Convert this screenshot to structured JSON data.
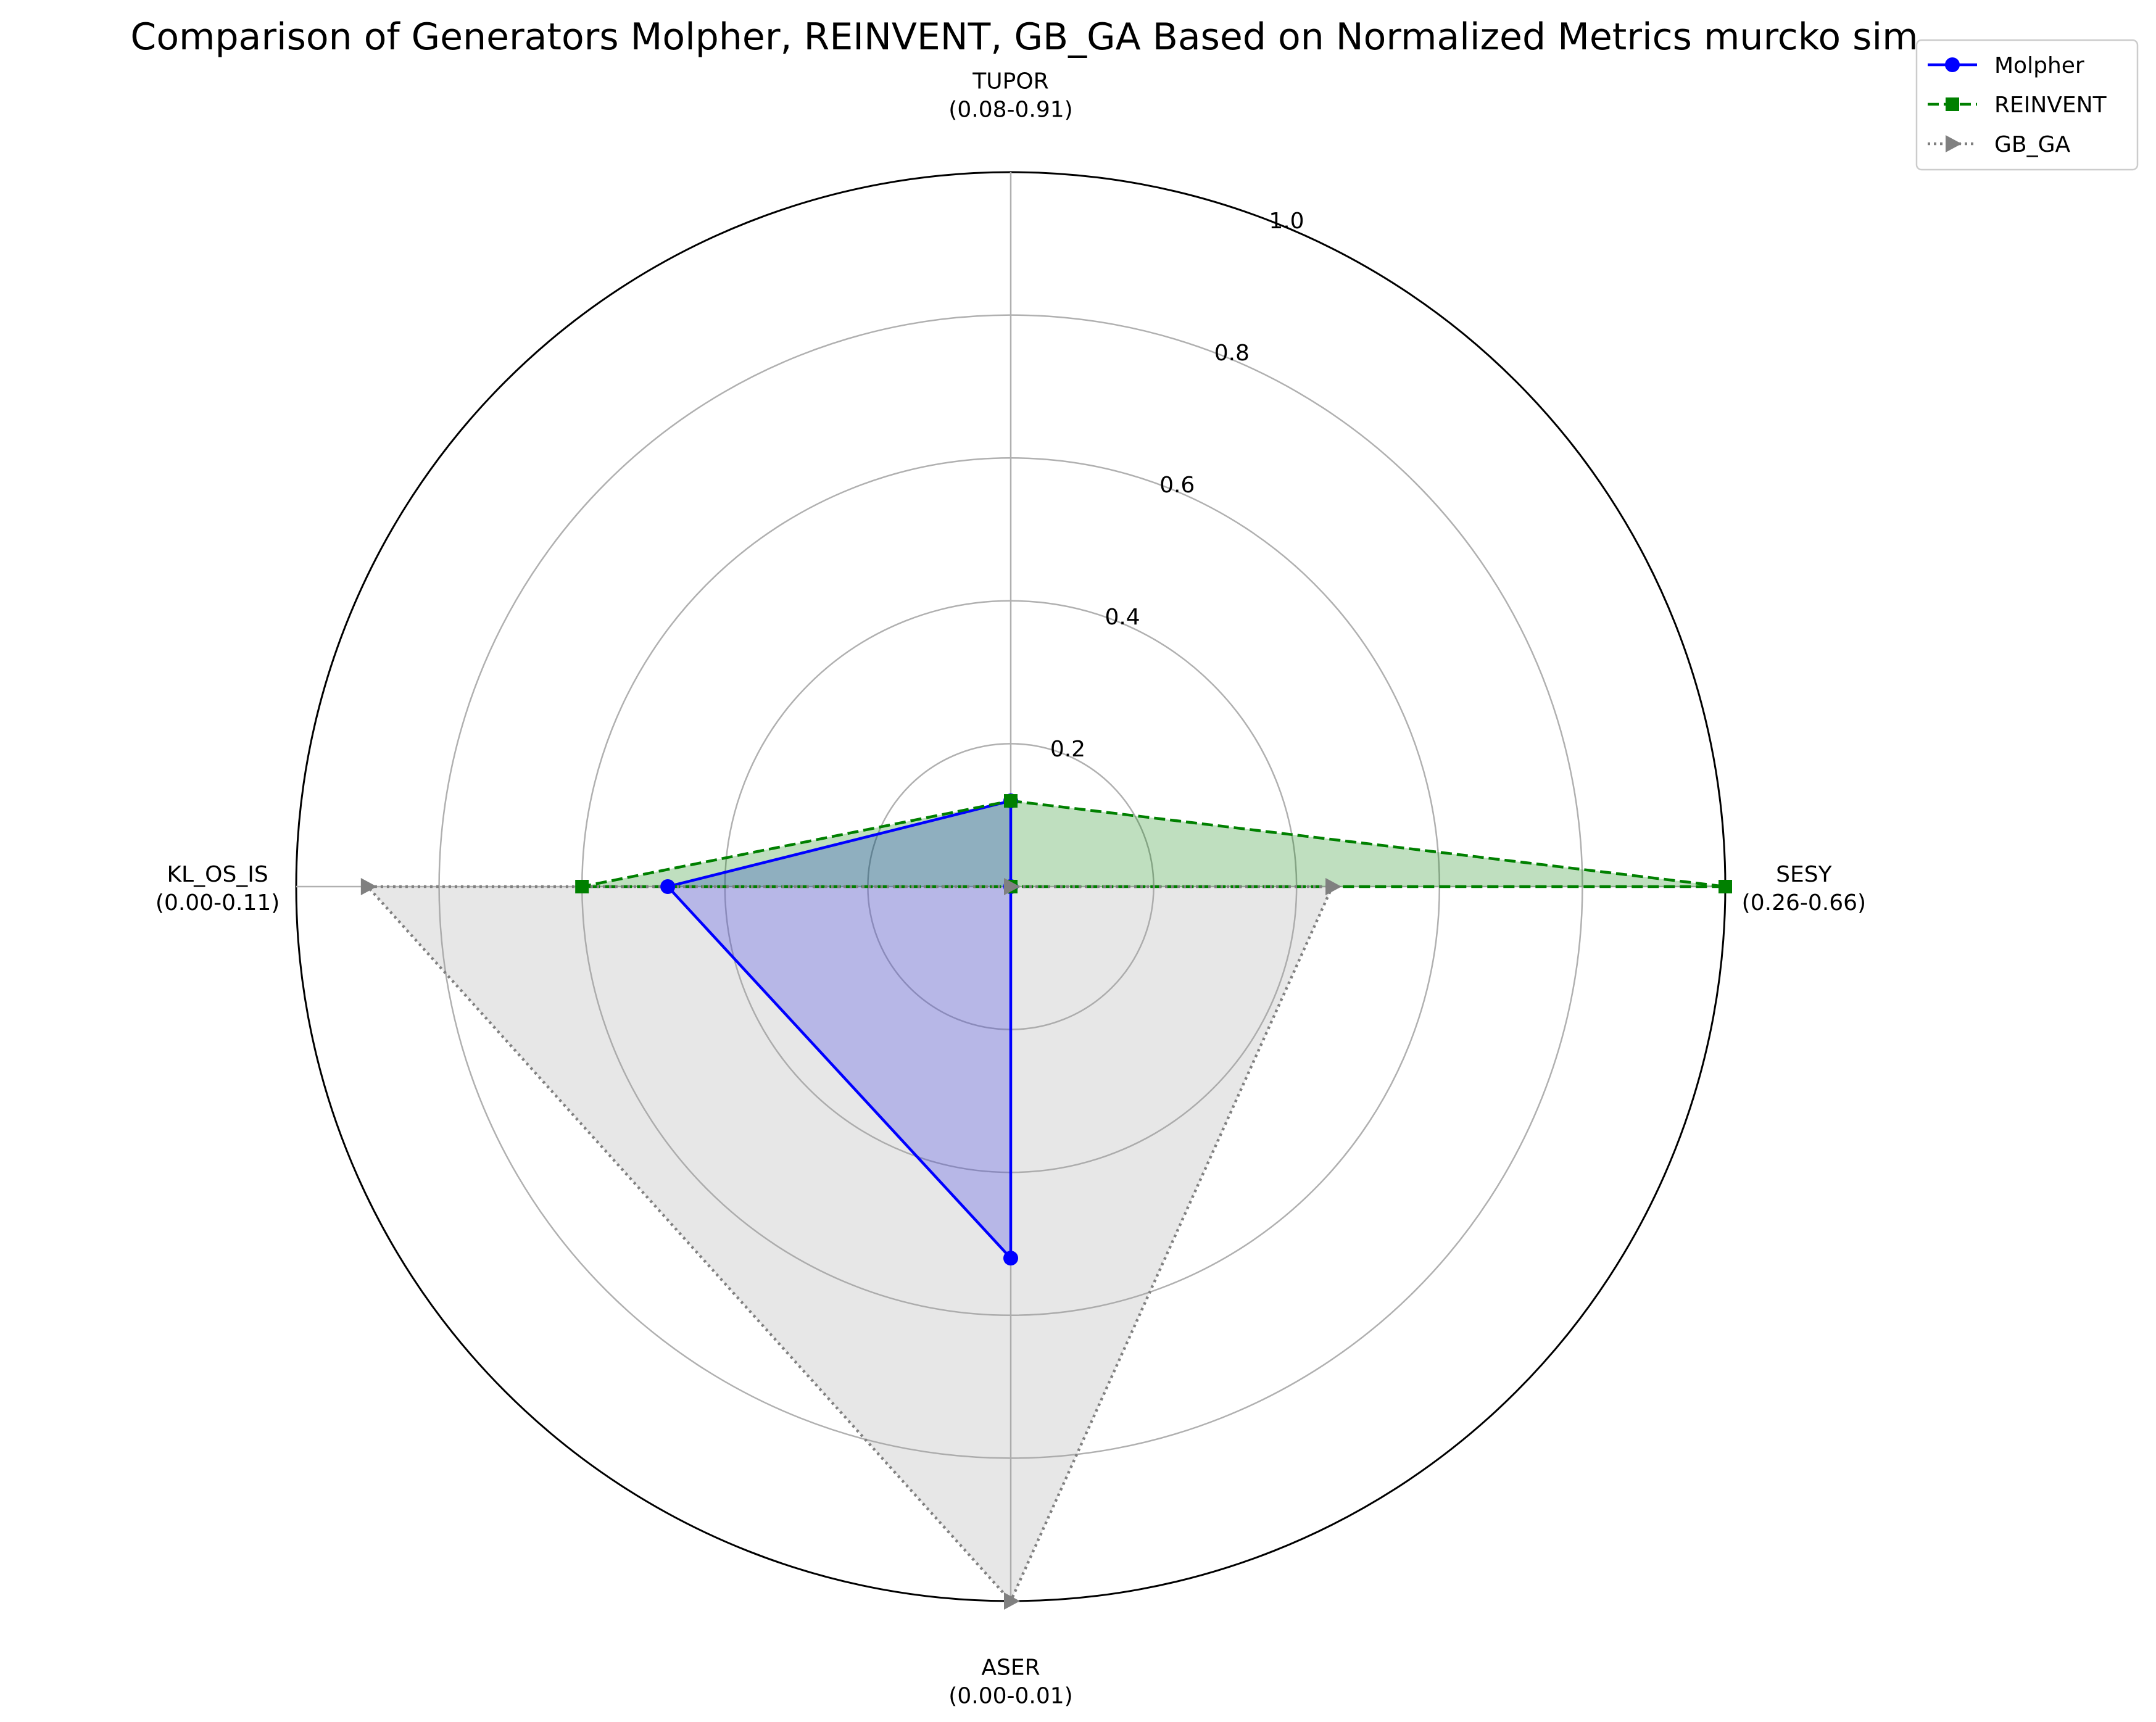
{
  "chart_data": {
    "type": "radar",
    "title": "Comparison of Generators Molpher, REINVENT, GB_GA Based on Normalized Metrics murcko sim",
    "axes": [
      {
        "name": "TUPOR",
        "range": "(0.08-0.91)"
      },
      {
        "name": "SESY",
        "range": "(0.26-0.66)"
      },
      {
        "name": "ASER",
        "range": "(0.00-0.01)"
      },
      {
        "name": "KL_OS_IS",
        "range": "(0.00-0.11)"
      }
    ],
    "rlim": [
      0,
      1.0
    ],
    "rticks": [
      "0.2",
      "0.4",
      "0.6",
      "0.8",
      "1.0"
    ],
    "rtick_values": [
      0.2,
      0.4,
      0.6,
      0.8,
      1.0
    ],
    "grid": true,
    "legend_position": "top-right",
    "series": [
      {
        "name": "Molpher",
        "values": [
          0.12,
          0.0,
          0.52,
          0.48
        ],
        "color": "#0000ff",
        "fill": "#0000ff",
        "linestyle": "solid",
        "marker": "circle"
      },
      {
        "name": "REINVENT",
        "values": [
          0.12,
          1.0,
          0.0,
          0.6
        ],
        "color": "#008000",
        "fill": "#008000",
        "linestyle": "dashed",
        "marker": "square"
      },
      {
        "name": "GB_GA",
        "values": [
          0.0,
          0.45,
          1.0,
          0.9
        ],
        "color": "#808080",
        "fill": "#a0a0a0",
        "linestyle": "dotted",
        "marker": "triangle-right"
      }
    ]
  }
}
